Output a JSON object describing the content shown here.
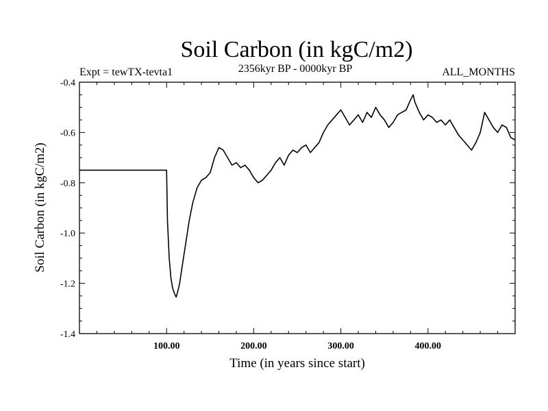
{
  "chart_data": {
    "type": "line",
    "title": "Soil Carbon (in kgC/m2)",
    "subtitle_left": "Expt = tewTX-tevta1",
    "subtitle_center": "2356kyr BP - 0000kyr BP",
    "subtitle_right": "ALL_MONTHS",
    "xlabel": "Time (in years since start)",
    "ylabel": "Soil Carbon (in kgC/m2)",
    "xlim": [
      0,
      500
    ],
    "ylim": [
      -1.4,
      -0.4
    ],
    "x_ticks": [
      100,
      200,
      300,
      400
    ],
    "x_tick_labels": [
      "100.00",
      "200.00",
      "300.00",
      "400.00"
    ],
    "y_ticks": [
      -1.4,
      -1.2,
      -1.0,
      -0.8,
      -0.6,
      -0.4
    ],
    "y_tick_labels": [
      "-1.4",
      "-1.2",
      "-1.0",
      "-0.8",
      "-0.6",
      "-0.4"
    ],
    "grid": false,
    "series": [
      {
        "name": "Soil Carbon",
        "color": "#000000",
        "x": [
          0,
          100,
          101,
          103,
          105,
          107,
          109,
          111,
          113,
          115,
          118,
          122,
          126,
          130,
          135,
          140,
          145,
          150,
          155,
          160,
          165,
          170,
          175,
          180,
          185,
          190,
          195,
          200,
          205,
          210,
          215,
          220,
          225,
          230,
          235,
          240,
          245,
          250,
          255,
          260,
          265,
          270,
          275,
          280,
          285,
          290,
          295,
          300,
          305,
          310,
          315,
          320,
          325,
          330,
          335,
          340,
          345,
          350,
          355,
          360,
          365,
          370,
          375,
          380,
          383,
          385,
          390,
          395,
          400,
          405,
          410,
          415,
          420,
          425,
          430,
          435,
          440,
          445,
          450,
          455,
          460,
          465,
          470,
          475,
          480,
          485,
          490,
          495,
          500
        ],
        "values": [
          -0.75,
          -0.75,
          -0.95,
          -1.1,
          -1.18,
          -1.22,
          -1.24,
          -1.255,
          -1.23,
          -1.2,
          -1.13,
          -1.04,
          -0.95,
          -0.88,
          -0.82,
          -0.79,
          -0.78,
          -0.76,
          -0.7,
          -0.66,
          -0.67,
          -0.7,
          -0.73,
          -0.72,
          -0.74,
          -0.73,
          -0.75,
          -0.78,
          -0.8,
          -0.79,
          -0.77,
          -0.75,
          -0.72,
          -0.7,
          -0.73,
          -0.69,
          -0.67,
          -0.68,
          -0.66,
          -0.65,
          -0.68,
          -0.66,
          -0.64,
          -0.6,
          -0.57,
          -0.55,
          -0.53,
          -0.51,
          -0.54,
          -0.57,
          -0.55,
          -0.53,
          -0.56,
          -0.52,
          -0.54,
          -0.5,
          -0.53,
          -0.55,
          -0.58,
          -0.56,
          -0.53,
          -0.52,
          -0.51,
          -0.47,
          -0.45,
          -0.48,
          -0.52,
          -0.55,
          -0.53,
          -0.54,
          -0.56,
          -0.55,
          -0.57,
          -0.55,
          -0.58,
          -0.61,
          -0.63,
          -0.65,
          -0.67,
          -0.64,
          -0.6,
          -0.52,
          -0.55,
          -0.58,
          -0.6,
          -0.57,
          -0.58,
          -0.62,
          -0.63
        ]
      }
    ]
  }
}
